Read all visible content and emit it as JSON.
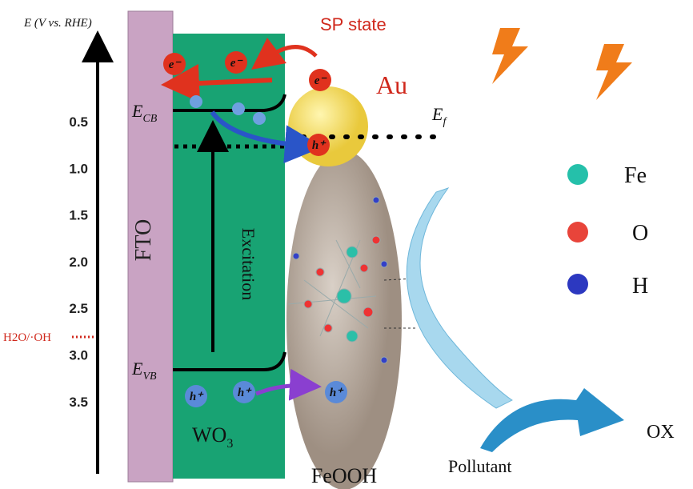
{
  "axis": {
    "label": "E (V vs. RHE)",
    "ticks": [
      "0.5",
      "1.0",
      "1.5",
      "2.0",
      "2.5",
      "3.0",
      "3.5"
    ]
  },
  "reference_level": "H2O/·OH",
  "layers": {
    "fto": "FTO",
    "wo3": {
      "main": "WO",
      "sub": "3"
    },
    "feooh": "FeOOH",
    "au": "Au"
  },
  "levels": {
    "cb": {
      "main": "E",
      "sub": "CB"
    },
    "vb": {
      "main": "E",
      "sub": "VB"
    },
    "ef": {
      "main": "E",
      "sub": "f"
    }
  },
  "process": {
    "excitation": "Excitation",
    "sp_state": "SP state"
  },
  "carriers": {
    "electron": "e⁻",
    "hole": "h⁺"
  },
  "legend": [
    "Fe",
    "O",
    "H"
  ],
  "pollutant": "Pollutant",
  "product": "OX"
}
